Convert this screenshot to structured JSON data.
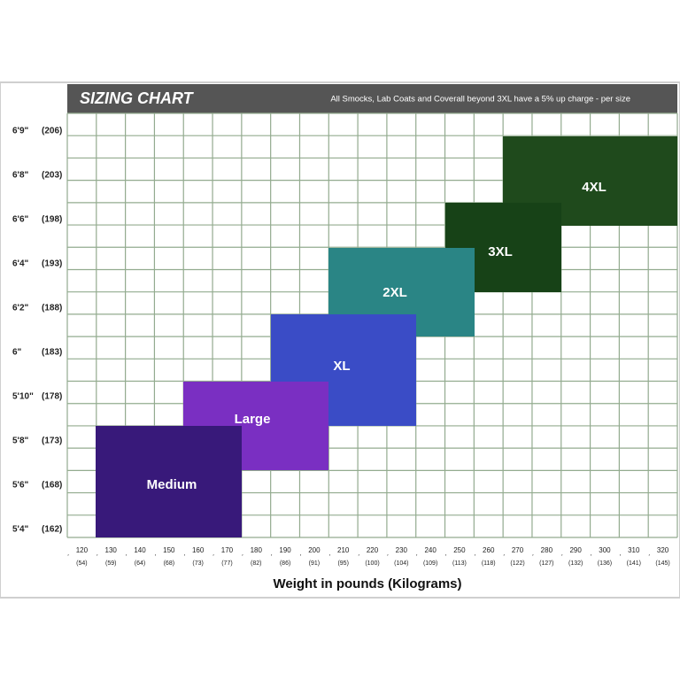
{
  "header": {
    "title": "SIZING CHART",
    "note": "All Smocks, Lab Coats and Coverall beyond 3XL have a 5% up charge - per size"
  },
  "y_axis": {
    "labels": [
      {
        "height": "6'9\"",
        "cm": "(206)"
      },
      {
        "height": "6'8\"",
        "cm": "(203)"
      },
      {
        "height": "6'6\"",
        "cm": "(198)"
      },
      {
        "height": "6'4\"",
        "cm": "(193)"
      },
      {
        "height": "6'2\"",
        "cm": "(188)"
      },
      {
        "height": "6\"",
        "cm": "(183)"
      },
      {
        "height": "5'10\"",
        "cm": "(178)"
      },
      {
        "height": "5'8\"",
        "cm": "(173)"
      },
      {
        "height": "5'6\"",
        "cm": "(168)"
      },
      {
        "height": "5'4\"",
        "cm": "(162)"
      }
    ]
  },
  "x_axis": {
    "title": "Weight in pounds (Kilograms)",
    "labels": [
      {
        "lb": "120",
        "kg": "(54)"
      },
      {
        "lb": "130",
        "kg": "(59)"
      },
      {
        "lb": "140",
        "kg": "(64)"
      },
      {
        "lb": "150",
        "kg": "(68)"
      },
      {
        "lb": "160",
        "kg": "(73)"
      },
      {
        "lb": "170",
        "kg": "(77)"
      },
      {
        "lb": "180",
        "kg": "(82)"
      },
      {
        "lb": "190",
        "kg": "(86)"
      },
      {
        "lb": "200",
        "kg": "(91)"
      },
      {
        "lb": "210",
        "kg": "(95)"
      },
      {
        "lb": "220",
        "kg": "(100)"
      },
      {
        "lb": "230",
        "kg": "(104)"
      },
      {
        "lb": "240",
        "kg": "(109)"
      },
      {
        "lb": "250",
        "kg": "(113)"
      },
      {
        "lb": "260",
        "kg": "(118)"
      },
      {
        "lb": "270",
        "kg": "(122)"
      },
      {
        "lb": "280",
        "kg": "(127)"
      },
      {
        "lb": "290",
        "kg": "(132)"
      },
      {
        "lb": "300",
        "kg": "(136)"
      },
      {
        "lb": "310",
        "kg": "(141)"
      },
      {
        "lb": "320",
        "kg": "(145)"
      }
    ]
  },
  "sizes": [
    "Medium",
    "Large",
    "XL",
    "2XL",
    "3XL",
    "4XL"
  ]
}
